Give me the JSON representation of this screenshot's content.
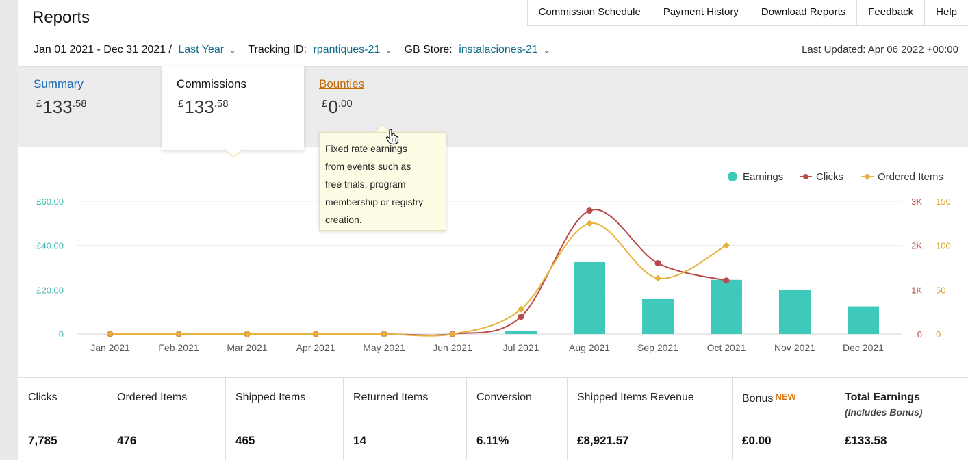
{
  "header": {
    "title": "Reports",
    "nav": [
      "Commission Schedule",
      "Payment History",
      "Download Reports",
      "Feedback",
      "Help"
    ]
  },
  "filters": {
    "date_range": "Jan 01 2021 - Dec 31 2021 /",
    "date_preset": "Last Year",
    "tracking_label": "Tracking ID:",
    "tracking_value": "rpantiques-21",
    "store_label": "GB Store:",
    "store_value": "instalaciones-21",
    "last_updated": "Last Updated: Apr 06 2022 +00:00"
  },
  "tabs": {
    "summary": {
      "label": "Summary",
      "currency": "£",
      "whole": "133",
      "decimal": ".58"
    },
    "commissions": {
      "label": "Commissions",
      "currency": "£",
      "whole": "133",
      "decimal": ".58"
    },
    "bounties": {
      "label": "Bounties",
      "currency": "£",
      "whole": "0",
      "decimal": ".00"
    }
  },
  "tooltip": {
    "lines": [
      "Fixed rate earnings",
      "from events such as",
      "free trials, program",
      "membership or registry",
      "creation."
    ]
  },
  "colors": {
    "earnings": "#3fc9bb",
    "clicks": "#b84a4a",
    "ordered": "#e8b23a",
    "left_axis": "#41b8b0"
  },
  "chart_data": {
    "type": "bar",
    "categories": [
      "Jan 2021",
      "Feb 2021",
      "Mar 2021",
      "Apr 2021",
      "May 2021",
      "Jun 2021",
      "Jul 2021",
      "Aug 2021",
      "Sep 2021",
      "Oct 2021",
      "Nov 2021",
      "Dec 2021"
    ],
    "series": [
      {
        "name": "Earnings",
        "type": "bar",
        "axis": "left",
        "values": [
          0,
          0,
          0,
          0,
          0,
          0,
          1.5,
          32.5,
          15.8,
          24.5,
          20,
          12.5
        ]
      },
      {
        "name": "Clicks",
        "type": "line",
        "axis": "right1",
        "values": [
          0,
          0,
          0,
          0,
          0,
          0,
          390,
          2790,
          1600,
          1210,
          null,
          null
        ]
      },
      {
        "name": "Ordered Items",
        "type": "line",
        "axis": "right2",
        "values": [
          0,
          0,
          0,
          0,
          0,
          0,
          28,
          125,
          63,
          100,
          null,
          null
        ]
      }
    ],
    "y_left": {
      "ticks": [
        "0",
        "£20.00",
        "£40.00",
        "£60.00"
      ],
      "range": [
        0,
        60
      ]
    },
    "y_right1": {
      "ticks": [
        "0",
        "1K",
        "2K",
        "3K"
      ],
      "range": [
        0,
        3000
      ]
    },
    "y_right2": {
      "ticks": [
        "0",
        "50",
        "100",
        "150"
      ],
      "range": [
        0,
        150
      ]
    },
    "legend": [
      "Earnings",
      "Clicks",
      "Ordered Items"
    ],
    "legend_position": "top-right",
    "grid": true
  },
  "stats": [
    {
      "label": "Clicks",
      "value": "7,785"
    },
    {
      "label": "Ordered Items",
      "value": "476"
    },
    {
      "label": "Shipped Items",
      "value": "465"
    },
    {
      "label": "Returned Items",
      "value": "14"
    },
    {
      "label": "Conversion",
      "value": "6.11%"
    },
    {
      "label": "Shipped Items Revenue",
      "value": "£8,921.57"
    },
    {
      "label": "Bonus",
      "badge": "NEW",
      "value": "£0.00"
    },
    {
      "label": "Total Earnings",
      "note": "(Includes Bonus)",
      "value": "£133.58"
    }
  ]
}
